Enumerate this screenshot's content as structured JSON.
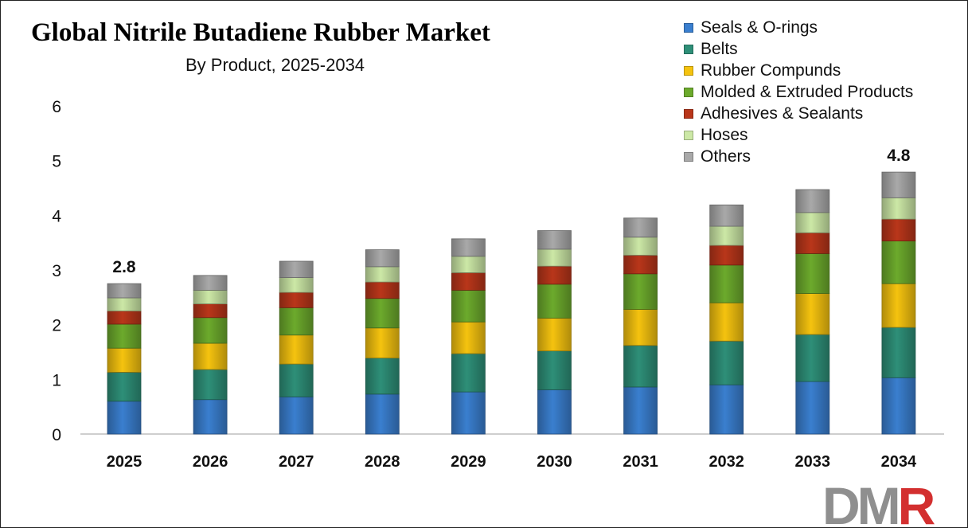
{
  "title": "Global Nitrile Butadiene Rubber Market",
  "subtitle": "By Product, 2025-2034",
  "logo_text": "DMR",
  "colors": {
    "seals": "#3a7fcf",
    "belts": "#2e8f78",
    "compounds": "#f5c30f",
    "molded": "#6caa2c",
    "adhesives": "#b9361a",
    "hoses": "#cce8a6",
    "others": "#a9a9a9",
    "logo_grey": "#8f8f8f",
    "logo_red": "#d32f2f"
  },
  "chart_data": {
    "type": "bar",
    "stacked": true,
    "title": "Global Nitrile Butadiene Rubber Market",
    "subtitle": "By Product, 2025-2034",
    "categories": [
      "2025",
      "2026",
      "2027",
      "2028",
      "2029",
      "2030",
      "2031",
      "2032",
      "2033",
      "2034"
    ],
    "ylim": [
      0,
      6
    ],
    "yticks": [
      "0",
      "1",
      "2",
      "3",
      "4",
      "5",
      "6"
    ],
    "grid": false,
    "legend_position": "top-right",
    "series": [
      {
        "name": "Seals & O-rings",
        "color": "#3a7fcf",
        "values": [
          0.6,
          0.63,
          0.68,
          0.73,
          0.77,
          0.81,
          0.86,
          0.9,
          0.96,
          1.03
        ]
      },
      {
        "name": "Belts",
        "color": "#2e8f78",
        "values": [
          0.53,
          0.55,
          0.6,
          0.66,
          0.7,
          0.71,
          0.76,
          0.8,
          0.86,
          0.92
        ]
      },
      {
        "name": "Rubber Compunds",
        "color": "#f5c30f",
        "values": [
          0.44,
          0.48,
          0.53,
          0.55,
          0.58,
          0.6,
          0.66,
          0.7,
          0.75,
          0.8
        ]
      },
      {
        "name": "Molded & Extruded Products",
        "color": "#6caa2c",
        "values": [
          0.44,
          0.47,
          0.5,
          0.54,
          0.58,
          0.62,
          0.65,
          0.69,
          0.73,
          0.78
        ]
      },
      {
        "name": "Adhesives & Sealants",
        "color": "#b9361a",
        "values": [
          0.24,
          0.25,
          0.28,
          0.3,
          0.32,
          0.33,
          0.34,
          0.36,
          0.38,
          0.4
        ]
      },
      {
        "name": "Hoses",
        "color": "#cce8a6",
        "values": [
          0.24,
          0.25,
          0.27,
          0.28,
          0.3,
          0.31,
          0.33,
          0.35,
          0.37,
          0.39
        ]
      },
      {
        "name": "Others",
        "color": "#a9a9a9",
        "values": [
          0.26,
          0.27,
          0.3,
          0.31,
          0.32,
          0.34,
          0.35,
          0.39,
          0.42,
          0.47
        ]
      }
    ],
    "total_labels": [
      {
        "category": "2025",
        "label": "2.8"
      },
      {
        "category": "2034",
        "label": "4.8"
      }
    ]
  }
}
